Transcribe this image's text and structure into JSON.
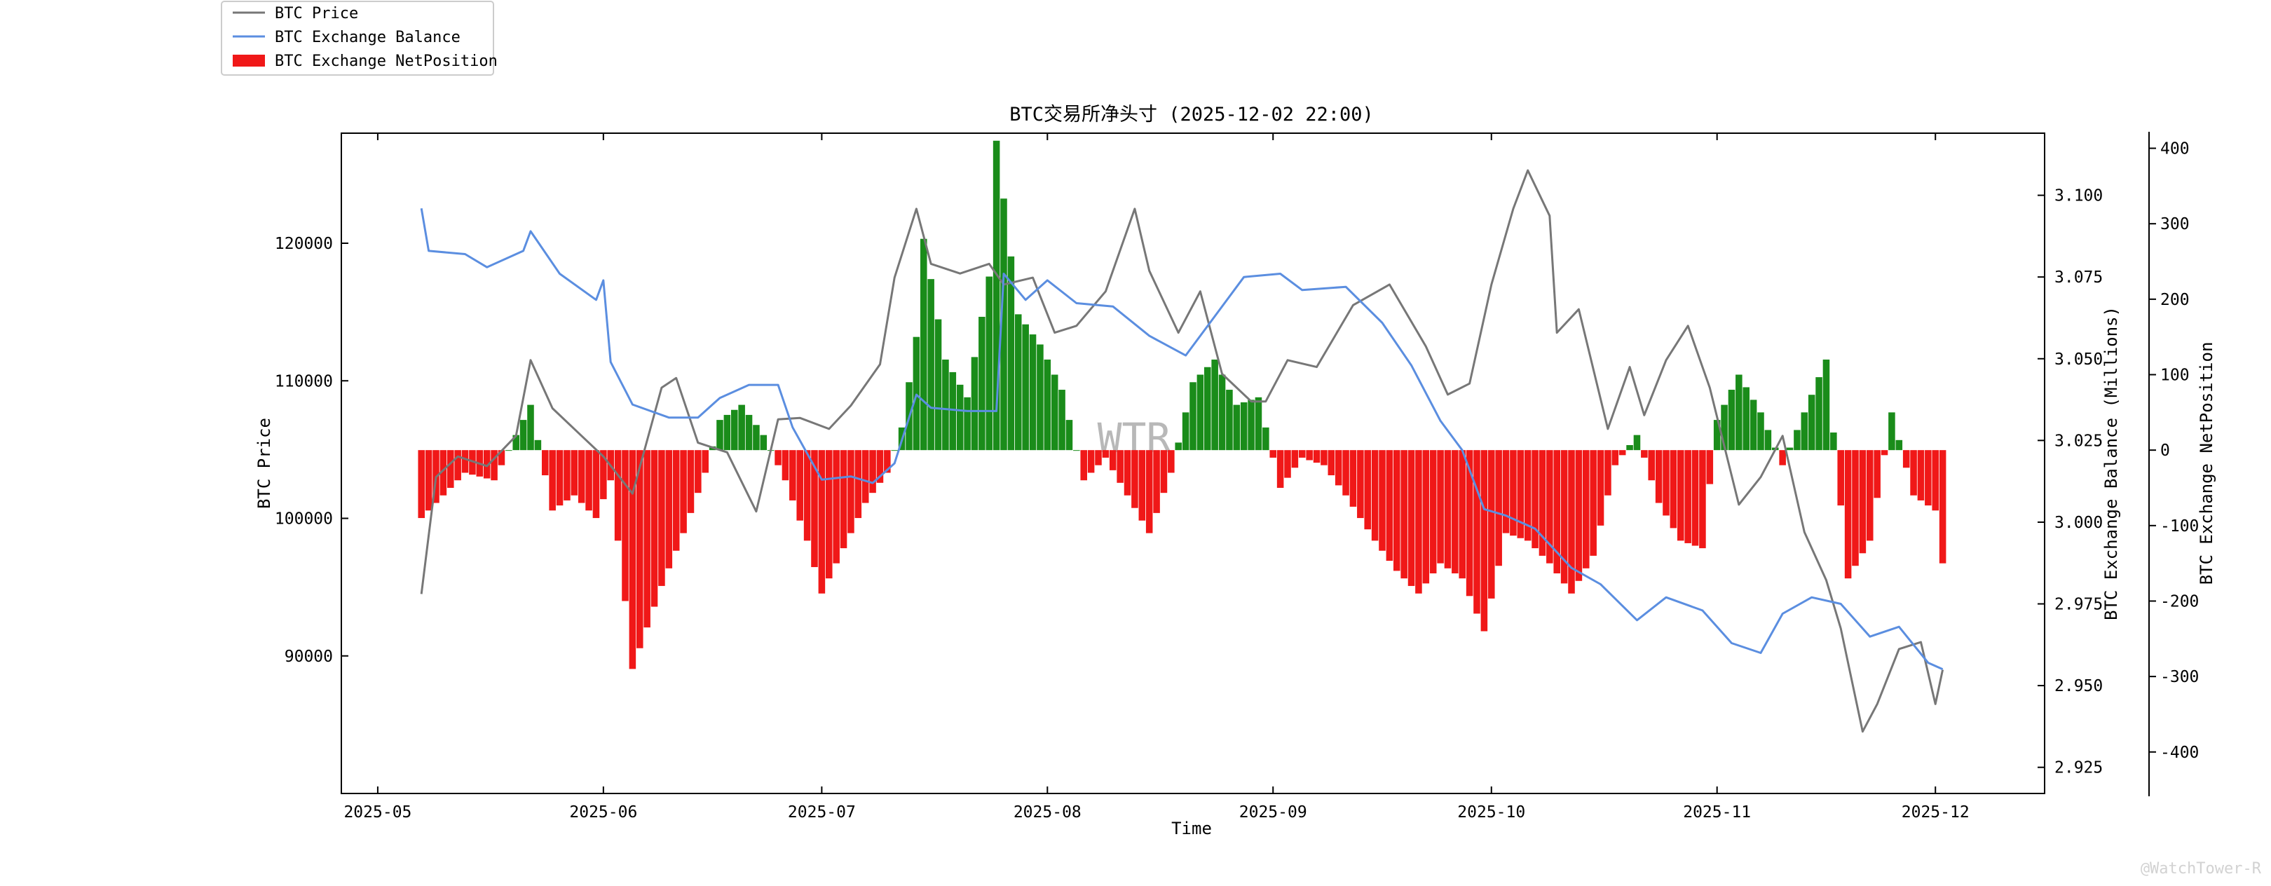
{
  "chart_data": {
    "type": "line",
    "title": "BTC交易所净头寸 (2025-12-02 22:00)",
    "xlabel": "Time",
    "ylabel_left": "BTC Price",
    "ylabel_right": "BTC Exchange Balance (Millions)",
    "ylabel_right2": "BTC Exchange NetPosition",
    "x_ticks": [
      "2025-05",
      "2025-06",
      "2025-07",
      "2025-08",
      "2025-09",
      "2025-10",
      "2025-11",
      "2025-12"
    ],
    "y_left_ticks": [
      "90000",
      "100000",
      "110000",
      "120000"
    ],
    "y_right_ticks": [
      "2.925",
      "2.950",
      "2.975",
      "3.000",
      "3.025",
      "3.050",
      "3.075",
      "3.100"
    ],
    "y_right2_ticks": [
      "-400",
      "-300",
      "-200",
      "-100",
      "0",
      "100",
      "200",
      "300",
      "400"
    ],
    "xlim": [
      "2025-04-26",
      "2025-12-16"
    ],
    "ylim_left": [
      80000,
      128000
    ],
    "ylim_right": [
      2.917,
      3.119
    ],
    "ylim_right2": [
      -455,
      420
    ],
    "legend_position": "upper-left outside",
    "watermark": "WTR",
    "footer": "@WatchTower-R",
    "colors": {
      "price": "#777777",
      "balance": "#5b8ee0",
      "net_positive": "#1a8c1a",
      "net_negative": "#f01818"
    },
    "series": [
      {
        "name": "BTC Price",
        "kind": "line",
        "points": [
          [
            "2025-05-07",
            94500
          ],
          [
            "2025-05-09",
            103000
          ],
          [
            "2025-05-12",
            104500
          ],
          [
            "2025-05-16",
            103800
          ],
          [
            "2025-05-20",
            106000
          ],
          [
            "2025-05-22",
            111500
          ],
          [
            "2025-05-25",
            108000
          ],
          [
            "2025-05-29",
            106000
          ],
          [
            "2025-06-01",
            104500
          ],
          [
            "2025-06-05",
            101800
          ],
          [
            "2025-06-09",
            109500
          ],
          [
            "2025-06-11",
            110200
          ],
          [
            "2025-06-14",
            105500
          ],
          [
            "2025-06-18",
            104800
          ],
          [
            "2025-06-22",
            100500
          ],
          [
            "2025-06-25",
            107200
          ],
          [
            "2025-06-28",
            107300
          ],
          [
            "2025-07-02",
            106500
          ],
          [
            "2025-07-05",
            108200
          ],
          [
            "2025-07-09",
            111200
          ],
          [
            "2025-07-11",
            117500
          ],
          [
            "2025-07-14",
            122500
          ],
          [
            "2025-07-16",
            118500
          ],
          [
            "2025-07-20",
            117800
          ],
          [
            "2025-07-24",
            118500
          ],
          [
            "2025-07-26",
            117000
          ],
          [
            "2025-07-30",
            117500
          ],
          [
            "2025-08-02",
            113500
          ],
          [
            "2025-08-05",
            114000
          ],
          [
            "2025-08-09",
            116500
          ],
          [
            "2025-08-13",
            122500
          ],
          [
            "2025-08-15",
            118000
          ],
          [
            "2025-08-19",
            113500
          ],
          [
            "2025-08-22",
            116500
          ],
          [
            "2025-08-25",
            110500
          ],
          [
            "2025-08-29",
            108500
          ],
          [
            "2025-08-31",
            108500
          ],
          [
            "2025-09-03",
            111500
          ],
          [
            "2025-09-07",
            111000
          ],
          [
            "2025-09-12",
            115500
          ],
          [
            "2025-09-17",
            117000
          ],
          [
            "2025-09-22",
            112500
          ],
          [
            "2025-09-25",
            109000
          ],
          [
            "2025-09-28",
            109800
          ],
          [
            "2025-10-01",
            117000
          ],
          [
            "2025-10-04",
            122500
          ],
          [
            "2025-10-06",
            125300
          ],
          [
            "2025-10-09",
            122000
          ],
          [
            "2025-10-10",
            113500
          ],
          [
            "2025-10-13",
            115200
          ],
          [
            "2025-10-17",
            106500
          ],
          [
            "2025-10-20",
            111000
          ],
          [
            "2025-10-22",
            107500
          ],
          [
            "2025-10-25",
            111500
          ],
          [
            "2025-10-28",
            114000
          ],
          [
            "2025-10-31",
            109500
          ],
          [
            "2025-11-04",
            101000
          ],
          [
            "2025-11-07",
            103000
          ],
          [
            "2025-11-10",
            106000
          ],
          [
            "2025-11-13",
            99000
          ],
          [
            "2025-11-16",
            95500
          ],
          [
            "2025-11-18",
            92000
          ],
          [
            "2025-11-21",
            84500
          ],
          [
            "2025-11-23",
            86500
          ],
          [
            "2025-11-26",
            90500
          ],
          [
            "2025-11-29",
            91000
          ],
          [
            "2025-12-01",
            86500
          ],
          [
            "2025-12-02",
            89000
          ]
        ]
      },
      {
        "name": "BTC Exchange Balance",
        "kind": "line",
        "points": [
          [
            "2025-05-07",
            3.096
          ],
          [
            "2025-05-08",
            3.083
          ],
          [
            "2025-05-13",
            3.082
          ],
          [
            "2025-05-16",
            3.078
          ],
          [
            "2025-05-21",
            3.083
          ],
          [
            "2025-05-22",
            3.089
          ],
          [
            "2025-05-26",
            3.076
          ],
          [
            "2025-05-31",
            3.068
          ],
          [
            "2025-06-01",
            3.074
          ],
          [
            "2025-06-02",
            3.049
          ],
          [
            "2025-06-05",
            3.036
          ],
          [
            "2025-06-10",
            3.032
          ],
          [
            "2025-06-14",
            3.032
          ],
          [
            "2025-06-17",
            3.038
          ],
          [
            "2025-06-21",
            3.042
          ],
          [
            "2025-06-25",
            3.042
          ],
          [
            "2025-06-27",
            3.029
          ],
          [
            "2025-07-01",
            3.013
          ],
          [
            "2025-07-05",
            3.014
          ],
          [
            "2025-07-08",
            3.012
          ],
          [
            "2025-07-11",
            3.018
          ],
          [
            "2025-07-14",
            3.039
          ],
          [
            "2025-07-16",
            3.035
          ],
          [
            "2025-07-21",
            3.034
          ],
          [
            "2025-07-25",
            3.034
          ],
          [
            "2025-07-26",
            3.076
          ],
          [
            "2025-07-29",
            3.068
          ],
          [
            "2025-08-01",
            3.074
          ],
          [
            "2025-08-05",
            3.067
          ],
          [
            "2025-08-10",
            3.066
          ],
          [
            "2025-08-15",
            3.057
          ],
          [
            "2025-08-20",
            3.051
          ],
          [
            "2025-08-24",
            3.063
          ],
          [
            "2025-08-28",
            3.075
          ],
          [
            "2025-09-02",
            3.076
          ],
          [
            "2025-09-05",
            3.071
          ],
          [
            "2025-09-11",
            3.072
          ],
          [
            "2025-09-16",
            3.061
          ],
          [
            "2025-09-20",
            3.048
          ],
          [
            "2025-09-24",
            3.031
          ],
          [
            "2025-09-27",
            3.022
          ],
          [
            "2025-09-30",
            3.004
          ],
          [
            "2025-10-03",
            3.002
          ],
          [
            "2025-10-07",
            2.998
          ],
          [
            "2025-10-12",
            2.986
          ],
          [
            "2025-10-16",
            2.981
          ],
          [
            "2025-10-21",
            2.97
          ],
          [
            "2025-10-25",
            2.977
          ],
          [
            "2025-10-30",
            2.973
          ],
          [
            "2025-11-03",
            2.963
          ],
          [
            "2025-11-07",
            2.96
          ],
          [
            "2025-11-10",
            2.972
          ],
          [
            "2025-11-14",
            2.977
          ],
          [
            "2025-11-18",
            2.975
          ],
          [
            "2025-11-22",
            2.965
          ],
          [
            "2025-11-26",
            2.968
          ],
          [
            "2025-11-30",
            2.957
          ],
          [
            "2025-12-02",
            2.955
          ]
        ]
      },
      {
        "name": "BTC Exchange NetPosition",
        "kind": "bar",
        "points": [
          [
            "2025-05-07",
            -90
          ],
          [
            "2025-05-10",
            -60
          ],
          [
            "2025-05-13",
            -30
          ],
          [
            "2025-05-17",
            -40
          ],
          [
            "2025-05-20",
            20
          ],
          [
            "2025-05-22",
            60
          ],
          [
            "2025-05-25",
            -80
          ],
          [
            "2025-05-28",
            -60
          ],
          [
            "2025-05-31",
            -90
          ],
          [
            "2025-06-02",
            -40
          ],
          [
            "2025-06-04",
            -200
          ],
          [
            "2025-06-05",
            -290
          ],
          [
            "2025-06-09",
            -180
          ],
          [
            "2025-06-12",
            -110
          ],
          [
            "2025-06-15",
            -30
          ],
          [
            "2025-06-17",
            40
          ],
          [
            "2025-06-20",
            60
          ],
          [
            "2025-06-23",
            20
          ],
          [
            "2025-06-26",
            -40
          ],
          [
            "2025-06-29",
            -120
          ],
          [
            "2025-07-01",
            -190
          ],
          [
            "2025-07-04",
            -130
          ],
          [
            "2025-07-07",
            -70
          ],
          [
            "2025-07-10",
            -30
          ],
          [
            "2025-07-12",
            30
          ],
          [
            "2025-07-14",
            150
          ],
          [
            "2025-07-15",
            280
          ],
          [
            "2025-07-18",
            120
          ],
          [
            "2025-07-21",
            70
          ],
          [
            "2025-07-24",
            230
          ],
          [
            "2025-07-25",
            410
          ],
          [
            "2025-07-28",
            180
          ],
          [
            "2025-07-31",
            140
          ],
          [
            "2025-08-03",
            80
          ],
          [
            "2025-08-06",
            -40
          ],
          [
            "2025-08-09",
            -10
          ],
          [
            "2025-08-12",
            -60
          ],
          [
            "2025-08-15",
            -110
          ],
          [
            "2025-08-18",
            -30
          ],
          [
            "2025-08-21",
            90
          ],
          [
            "2025-08-24",
            120
          ],
          [
            "2025-08-27",
            60
          ],
          [
            "2025-08-30",
            70
          ],
          [
            "2025-09-02",
            -50
          ],
          [
            "2025-09-05",
            -10
          ],
          [
            "2025-09-08",
            -20
          ],
          [
            "2025-09-11",
            -60
          ],
          [
            "2025-09-15",
            -120
          ],
          [
            "2025-09-18",
            -160
          ],
          [
            "2025-09-21",
            -190
          ],
          [
            "2025-09-24",
            -150
          ],
          [
            "2025-09-27",
            -170
          ],
          [
            "2025-09-30",
            -240
          ],
          [
            "2025-10-03",
            -110
          ],
          [
            "2025-10-06",
            -120
          ],
          [
            "2025-10-09",
            -150
          ],
          [
            "2025-10-12",
            -190
          ],
          [
            "2025-10-15",
            -140
          ],
          [
            "2025-10-18",
            -20
          ],
          [
            "2025-10-21",
            20
          ],
          [
            "2025-10-24",
            -70
          ],
          [
            "2025-10-27",
            -120
          ],
          [
            "2025-10-30",
            -130
          ],
          [
            "2025-11-01",
            40
          ],
          [
            "2025-11-04",
            100
          ],
          [
            "2025-11-07",
            50
          ],
          [
            "2025-11-10",
            -20
          ],
          [
            "2025-11-13",
            50
          ],
          [
            "2025-11-16",
            120
          ],
          [
            "2025-11-19",
            -170
          ],
          [
            "2025-11-22",
            -120
          ],
          [
            "2025-11-25",
            50
          ],
          [
            "2025-11-28",
            -60
          ],
          [
            "2025-12-01",
            -80
          ],
          [
            "2025-12-02",
            -150
          ]
        ]
      }
    ]
  }
}
